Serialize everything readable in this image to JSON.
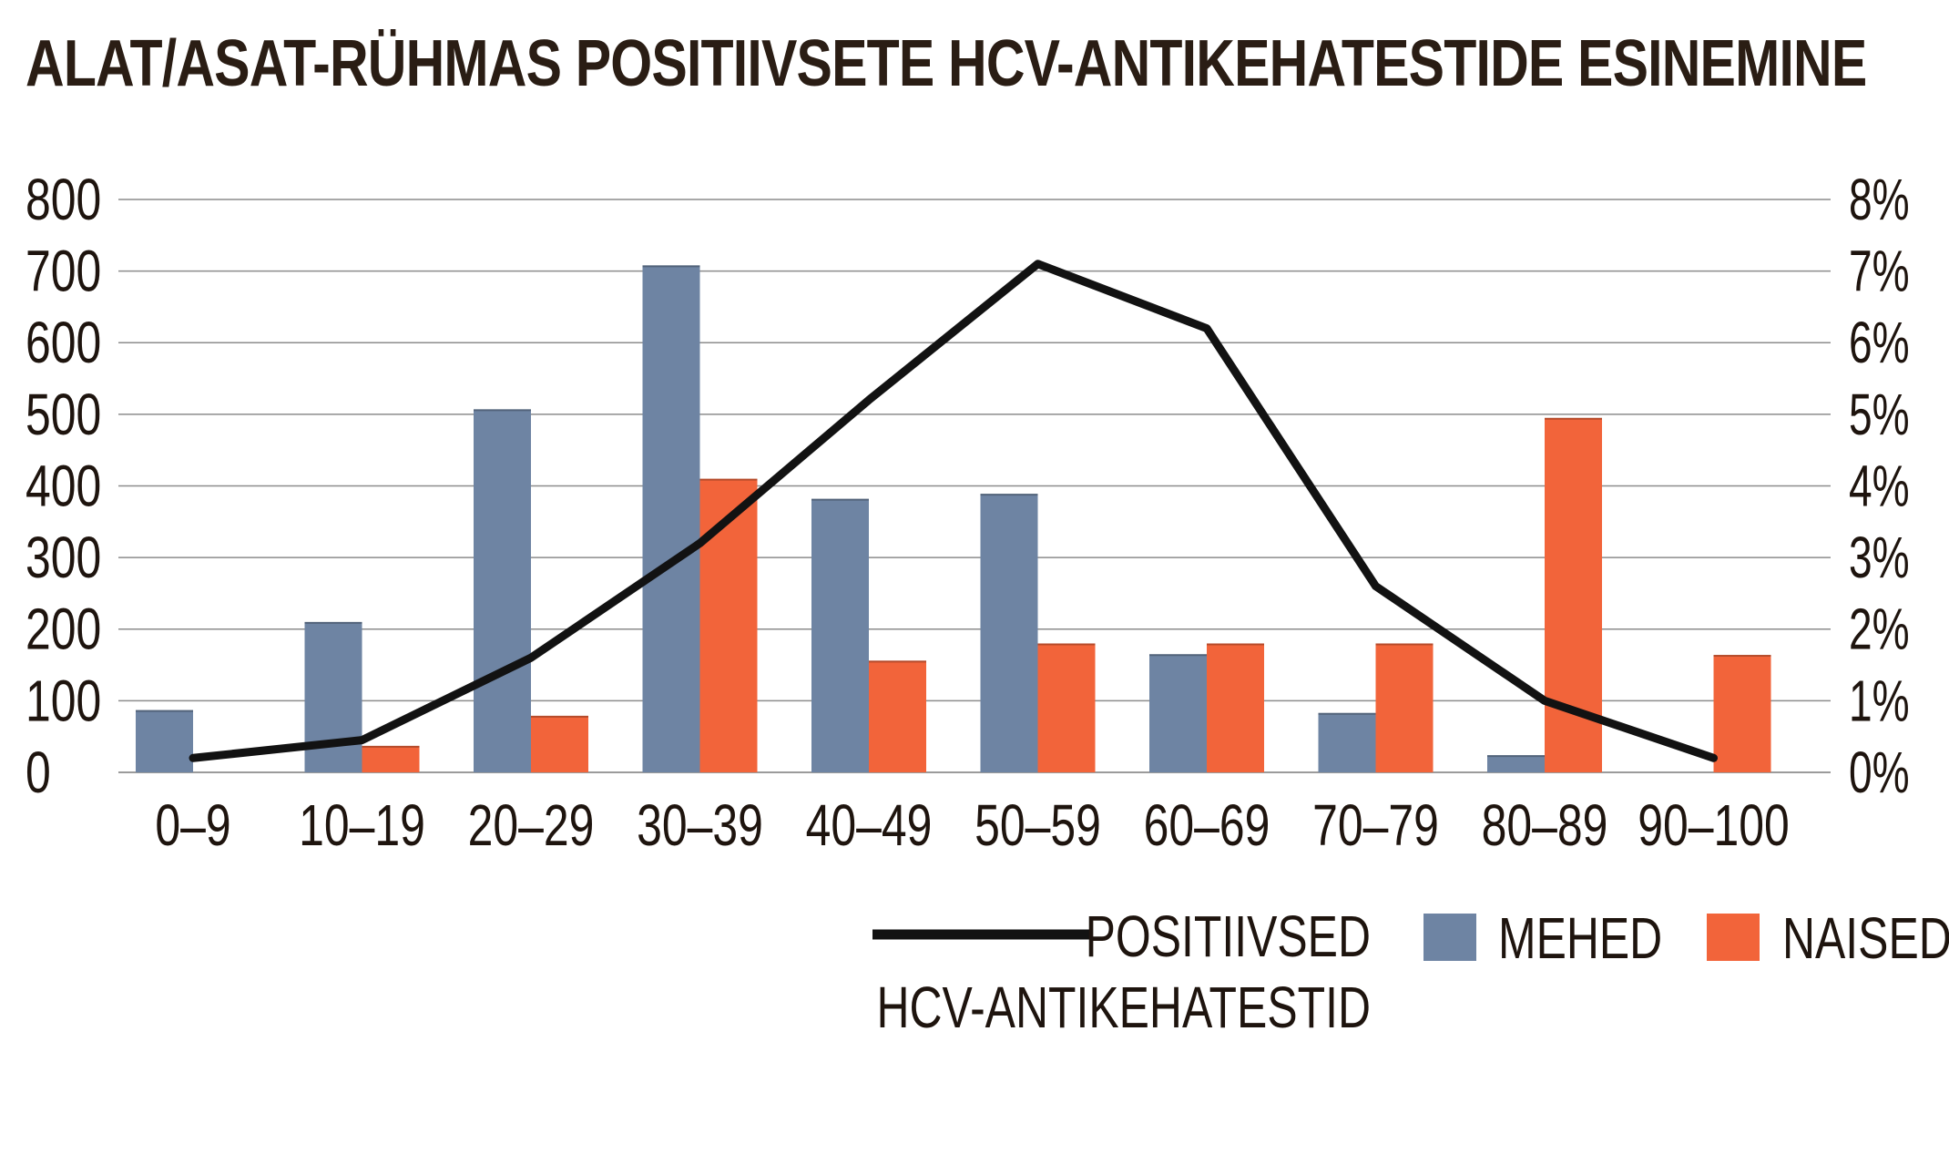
{
  "title": "ALAT/ASAT-RÜHMAS POSITIIVSETE HCV-ANTIKEHATESTIDE ESINEMINE",
  "chart_data": {
    "type": "bar",
    "title": "ALAT/ASAT-RÜHMAS POSITIIVSETE HCV-ANTIKEHATESTIDE ESINEMINE",
    "categories": [
      "0–9",
      "10–19",
      "20–29",
      "30–39",
      "40–49",
      "50–59",
      "60–69",
      "70–79",
      "80–89",
      "90–100"
    ],
    "ylim": [
      0,
      800
    ],
    "y_ticks": [
      "0",
      "100",
      "200",
      "300",
      "400",
      "500",
      "600",
      "700",
      "800"
    ],
    "y2lim": [
      0,
      8
    ],
    "y2_ticks": [
      "0%",
      "1%",
      "2%",
      "3%",
      "4%",
      "5%",
      "6%",
      "7%",
      "8%"
    ],
    "grid": true,
    "legend_position": "bottom-right",
    "series": [
      {
        "name": "MEHED",
        "kind": "bar",
        "axis": "left",
        "color": "#6e84a3",
        "values": [
          87,
          210,
          507,
          708,
          382,
          389,
          165,
          83,
          24,
          0
        ]
      },
      {
        "name": "NAISED",
        "kind": "bar",
        "axis": "left",
        "color": "#f2643a",
        "values": [
          0,
          37,
          79,
          410,
          156,
          180,
          180,
          180,
          495,
          164
        ]
      },
      {
        "name": "POSITIIVSED HCV-ANTIKEHATESTID",
        "name_lines": [
          "POSITIIVSED",
          "HCV-ANTIKEHATESTID"
        ],
        "kind": "line",
        "axis": "right",
        "color": "#121212",
        "values": [
          0.2,
          0.45,
          1.6,
          3.2,
          5.2,
          7.1,
          6.2,
          2.6,
          1.0,
          0.2
        ]
      }
    ]
  }
}
